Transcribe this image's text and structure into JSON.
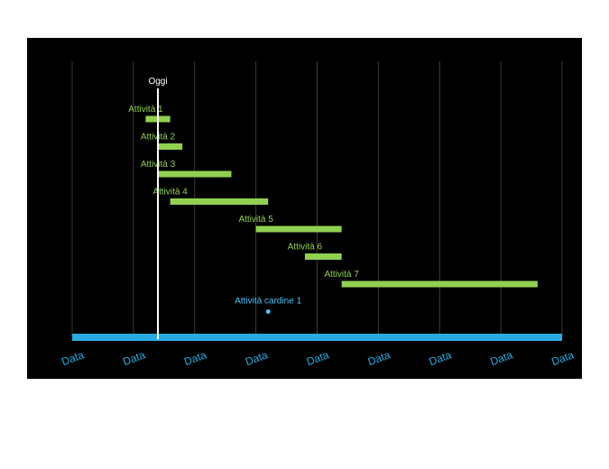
{
  "chart_data": {
    "type": "gantt",
    "today_label": "Oggi",
    "x_tick_labels": [
      "Data",
      "Data",
      "Data",
      "Data",
      "Data",
      "Data",
      "Data",
      "Data",
      "Data"
    ],
    "timeline_range": [
      0,
      8
    ],
    "today": 1.4,
    "tasks": [
      {
        "label": "Attività 1",
        "start": 1.2,
        "end": 1.6
      },
      {
        "label": "Attività 2",
        "start": 1.4,
        "end": 1.8
      },
      {
        "label": "Attività 3",
        "start": 1.4,
        "end": 2.6
      },
      {
        "label": "Attività 4",
        "start": 1.6,
        "end": 3.2
      },
      {
        "label": "Attività 5",
        "start": 3.0,
        "end": 4.4
      },
      {
        "label": "Attività 6",
        "start": 3.8,
        "end": 4.4
      },
      {
        "label": "Attività 7",
        "start": 4.4,
        "end": 7.6
      }
    ],
    "milestones": [
      {
        "label": "Attività cardine 1",
        "at": 3.2
      }
    ],
    "colors": {
      "background": "#000000",
      "task_bar": "#92d050",
      "task_label": "#92d050",
      "milestone": "#4fc3f7",
      "timeline": "#29abe2",
      "date_label": "#29abe2",
      "today_line": "#ffffff",
      "gridline": "#3a3a3a"
    },
    "grid": true
  }
}
